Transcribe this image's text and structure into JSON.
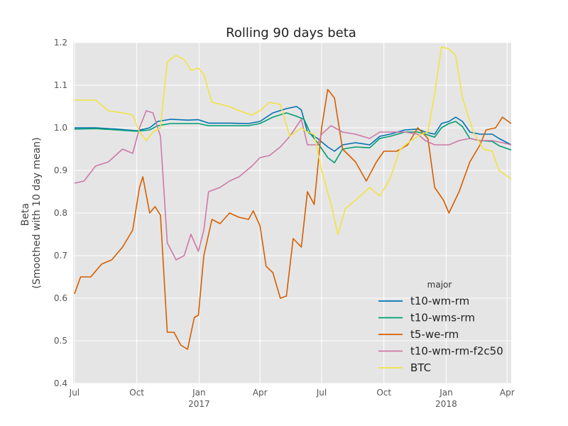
{
  "chart_data": {
    "type": "line",
    "title": "Rolling 90 days beta",
    "ylabel_lines": [
      "Beta",
      "(Smoothed with 10 day mean)"
    ],
    "xlabel": "",
    "ylim": [
      0.4,
      1.2
    ],
    "yticks": [
      "0.4",
      "0.5",
      "0.6",
      "0.7",
      "0.8",
      "0.9",
      "1.0",
      "1.1",
      "1.2"
    ],
    "xrange": [
      "2016-06-29",
      "2018-04-07"
    ],
    "xticks": [
      {
        "date": "2016-07-01",
        "label": "Jul",
        "sub": ""
      },
      {
        "date": "2016-10-01",
        "label": "Oct",
        "sub": ""
      },
      {
        "date": "2017-01-01",
        "label": "Jan",
        "sub": "2017"
      },
      {
        "date": "2017-04-01",
        "label": "Apr",
        "sub": ""
      },
      {
        "date": "2017-07-01",
        "label": "Jul",
        "sub": ""
      },
      {
        "date": "2017-10-01",
        "label": "Oct",
        "sub": ""
      },
      {
        "date": "2018-01-01",
        "label": "Jan",
        "sub": "2018"
      },
      {
        "date": "2018-04-01",
        "label": "Apr",
        "sub": ""
      }
    ],
    "grid": true,
    "legend": {
      "title": "major",
      "placement": "lower-right"
    },
    "series": [
      {
        "name": "t10-wm-rm",
        "color": "#0072B2",
        "points": [
          [
            "2016-07-01",
            1.0
          ],
          [
            "2016-08-01",
            1.0
          ],
          [
            "2016-09-01",
            0.997
          ],
          [
            "2016-10-01",
            0.993
          ],
          [
            "2016-10-20",
            1.0
          ],
          [
            "2016-11-01",
            1.015
          ],
          [
            "2016-11-20",
            1.02
          ],
          [
            "2016-12-15",
            1.018
          ],
          [
            "2016-12-31",
            1.019
          ],
          [
            "2017-01-15",
            1.011
          ],
          [
            "2017-02-15",
            1.011
          ],
          [
            "2017-03-15",
            1.01
          ],
          [
            "2017-04-01",
            1.015
          ],
          [
            "2017-04-20",
            1.035
          ],
          [
            "2017-05-10",
            1.045
          ],
          [
            "2017-05-25",
            1.05
          ],
          [
            "2017-06-01",
            1.042
          ],
          [
            "2017-06-10",
            0.99
          ],
          [
            "2017-06-25",
            0.975
          ],
          [
            "2017-07-10",
            0.955
          ],
          [
            "2017-07-20",
            0.945
          ],
          [
            "2017-08-01",
            0.96
          ],
          [
            "2017-08-20",
            0.965
          ],
          [
            "2017-09-10",
            0.96
          ],
          [
            "2017-09-25",
            0.98
          ],
          [
            "2017-10-10",
            0.985
          ],
          [
            "2017-11-01",
            0.995
          ],
          [
            "2017-11-20",
            0.997
          ],
          [
            "2017-12-01",
            0.99
          ],
          [
            "2017-12-15",
            0.985
          ],
          [
            "2017-12-25",
            1.01
          ],
          [
            "2018-01-05",
            1.015
          ],
          [
            "2018-01-15",
            1.025
          ],
          [
            "2018-01-25",
            1.015
          ],
          [
            "2018-02-05",
            0.99
          ],
          [
            "2018-02-20",
            0.985
          ],
          [
            "2018-03-10",
            0.985
          ],
          [
            "2018-03-20",
            0.975
          ],
          [
            "2018-04-07",
            0.96
          ]
        ]
      },
      {
        "name": "t10-wms-rm",
        "color": "#009E73",
        "points": [
          [
            "2016-07-01",
            0.997
          ],
          [
            "2016-08-01",
            0.998
          ],
          [
            "2016-09-01",
            0.995
          ],
          [
            "2016-10-01",
            0.992
          ],
          [
            "2016-10-20",
            0.995
          ],
          [
            "2016-11-01",
            1.005
          ],
          [
            "2016-11-20",
            1.01
          ],
          [
            "2016-12-15",
            1.01
          ],
          [
            "2016-12-31",
            1.01
          ],
          [
            "2017-01-15",
            1.005
          ],
          [
            "2017-02-15",
            1.005
          ],
          [
            "2017-03-15",
            1.005
          ],
          [
            "2017-04-01",
            1.01
          ],
          [
            "2017-04-20",
            1.025
          ],
          [
            "2017-05-10",
            1.035
          ],
          [
            "2017-05-25",
            1.027
          ],
          [
            "2017-06-05",
            1.02
          ],
          [
            "2017-06-15",
            0.985
          ],
          [
            "2017-06-25",
            0.965
          ],
          [
            "2017-07-10",
            0.93
          ],
          [
            "2017-07-20",
            0.918
          ],
          [
            "2017-08-01",
            0.95
          ],
          [
            "2017-08-20",
            0.955
          ],
          [
            "2017-09-10",
            0.953
          ],
          [
            "2017-09-25",
            0.975
          ],
          [
            "2017-10-10",
            0.98
          ],
          [
            "2017-11-01",
            0.99
          ],
          [
            "2017-11-20",
            0.99
          ],
          [
            "2017-12-01",
            0.985
          ],
          [
            "2017-12-15",
            0.978
          ],
          [
            "2017-12-25",
            1.0
          ],
          [
            "2018-01-05",
            1.01
          ],
          [
            "2018-01-15",
            1.015
          ],
          [
            "2018-01-25",
            1.003
          ],
          [
            "2018-02-05",
            0.975
          ],
          [
            "2018-02-20",
            0.97
          ],
          [
            "2018-03-10",
            0.968
          ],
          [
            "2018-03-20",
            0.958
          ],
          [
            "2018-04-07",
            0.948
          ]
        ]
      },
      {
        "name": "t5-we-rm",
        "color": "#D55E00",
        "points": [
          [
            "2016-07-01",
            0.61
          ],
          [
            "2016-07-10",
            0.65
          ],
          [
            "2016-07-25",
            0.65
          ],
          [
            "2016-08-10",
            0.68
          ],
          [
            "2016-08-25",
            0.69
          ],
          [
            "2016-09-10",
            0.72
          ],
          [
            "2016-09-25",
            0.76
          ],
          [
            "2016-10-05",
            0.86
          ],
          [
            "2016-10-10",
            0.885
          ],
          [
            "2016-10-20",
            0.8
          ],
          [
            "2016-10-28",
            0.815
          ],
          [
            "2016-11-05",
            0.795
          ],
          [
            "2016-11-15",
            0.52
          ],
          [
            "2016-11-25",
            0.52
          ],
          [
            "2016-12-05",
            0.49
          ],
          [
            "2016-12-15",
            0.48
          ],
          [
            "2016-12-25",
            0.555
          ],
          [
            "2016-12-31",
            0.56
          ],
          [
            "2017-01-08",
            0.7
          ],
          [
            "2017-01-20",
            0.785
          ],
          [
            "2017-02-01",
            0.775
          ],
          [
            "2017-02-15",
            0.8
          ],
          [
            "2017-03-01",
            0.79
          ],
          [
            "2017-03-15",
            0.785
          ],
          [
            "2017-03-22",
            0.805
          ],
          [
            "2017-04-01",
            0.77
          ],
          [
            "2017-04-10",
            0.675
          ],
          [
            "2017-04-20",
            0.66
          ],
          [
            "2017-05-01",
            0.6
          ],
          [
            "2017-05-10",
            0.605
          ],
          [
            "2017-05-20",
            0.74
          ],
          [
            "2017-06-01",
            0.72
          ],
          [
            "2017-06-10",
            0.85
          ],
          [
            "2017-06-20",
            0.82
          ],
          [
            "2017-07-01",
            1.0
          ],
          [
            "2017-07-10",
            1.09
          ],
          [
            "2017-07-20",
            1.07
          ],
          [
            "2017-08-01",
            0.95
          ],
          [
            "2017-08-20",
            0.92
          ],
          [
            "2017-09-05",
            0.875
          ],
          [
            "2017-09-20",
            0.92
          ],
          [
            "2017-10-01",
            0.945
          ],
          [
            "2017-10-20",
            0.945
          ],
          [
            "2017-11-05",
            0.96
          ],
          [
            "2017-11-20",
            1.0
          ],
          [
            "2017-12-05",
            0.975
          ],
          [
            "2017-12-15",
            0.86
          ],
          [
            "2017-12-28",
            0.83
          ],
          [
            "2018-01-05",
            0.8
          ],
          [
            "2018-01-20",
            0.85
          ],
          [
            "2018-02-05",
            0.92
          ],
          [
            "2018-02-20",
            0.96
          ],
          [
            "2018-03-01",
            0.995
          ],
          [
            "2018-03-15",
            1.0
          ],
          [
            "2018-03-25",
            1.025
          ],
          [
            "2018-04-07",
            1.01
          ]
        ]
      },
      {
        "name": "t10-wm-rm-f2c50",
        "color": "#CC79A7",
        "points": [
          [
            "2016-07-01",
            0.87
          ],
          [
            "2016-07-15",
            0.875
          ],
          [
            "2016-08-01",
            0.91
          ],
          [
            "2016-08-20",
            0.92
          ],
          [
            "2016-09-10",
            0.95
          ],
          [
            "2016-09-25",
            0.94
          ],
          [
            "2016-10-05",
            1.0
          ],
          [
            "2016-10-15",
            1.04
          ],
          [
            "2016-10-25",
            1.035
          ],
          [
            "2016-11-05",
            0.98
          ],
          [
            "2016-11-15",
            0.73
          ],
          [
            "2016-11-28",
            0.69
          ],
          [
            "2016-12-10",
            0.7
          ],
          [
            "2016-12-20",
            0.75
          ],
          [
            "2016-12-31",
            0.71
          ],
          [
            "2017-01-08",
            0.76
          ],
          [
            "2017-01-15",
            0.85
          ],
          [
            "2017-02-01",
            0.86
          ],
          [
            "2017-02-15",
            0.875
          ],
          [
            "2017-03-01",
            0.885
          ],
          [
            "2017-03-20",
            0.91
          ],
          [
            "2017-04-01",
            0.93
          ],
          [
            "2017-04-15",
            0.935
          ],
          [
            "2017-05-01",
            0.955
          ],
          [
            "2017-05-15",
            0.98
          ],
          [
            "2017-06-01",
            1.02
          ],
          [
            "2017-06-10",
            0.96
          ],
          [
            "2017-06-25",
            0.96
          ],
          [
            "2017-07-01",
            0.985
          ],
          [
            "2017-07-15",
            1.005
          ],
          [
            "2017-08-01",
            0.99
          ],
          [
            "2017-08-20",
            0.985
          ],
          [
            "2017-09-10",
            0.975
          ],
          [
            "2017-09-25",
            0.99
          ],
          [
            "2017-10-10",
            0.99
          ],
          [
            "2017-11-01",
            0.99
          ],
          [
            "2017-11-20",
            0.985
          ],
          [
            "2017-12-01",
            0.97
          ],
          [
            "2017-12-15",
            0.96
          ],
          [
            "2018-01-05",
            0.96
          ],
          [
            "2018-01-20",
            0.97
          ],
          [
            "2018-02-05",
            0.975
          ],
          [
            "2018-02-20",
            0.97
          ],
          [
            "2018-03-10",
            0.97
          ],
          [
            "2018-03-25",
            0.965
          ],
          [
            "2018-04-07",
            0.96
          ]
        ]
      },
      {
        "name": "BTC",
        "color": "#F0E442",
        "points": [
          [
            "2016-07-01",
            1.065
          ],
          [
            "2016-08-01",
            1.065
          ],
          [
            "2016-08-20",
            1.04
          ],
          [
            "2016-09-10",
            1.035
          ],
          [
            "2016-09-25",
            1.03
          ],
          [
            "2016-10-05",
            0.99
          ],
          [
            "2016-10-15",
            0.97
          ],
          [
            "2016-10-25",
            0.99
          ],
          [
            "2016-11-05",
            1.0
          ],
          [
            "2016-11-15",
            1.155
          ],
          [
            "2016-11-28",
            1.17
          ],
          [
            "2016-12-10",
            1.16
          ],
          [
            "2016-12-20",
            1.135
          ],
          [
            "2016-12-31",
            1.14
          ],
          [
            "2017-01-08",
            1.125
          ],
          [
            "2017-01-20",
            1.06
          ],
          [
            "2017-02-15",
            1.05
          ],
          [
            "2017-03-01",
            1.04
          ],
          [
            "2017-03-20",
            1.03
          ],
          [
            "2017-04-01",
            1.04
          ],
          [
            "2017-04-15",
            1.06
          ],
          [
            "2017-05-01",
            1.055
          ],
          [
            "2017-05-15",
            0.98
          ],
          [
            "2017-06-01",
            1.0
          ],
          [
            "2017-06-10",
            0.99
          ],
          [
            "2017-06-20",
            0.985
          ],
          [
            "2017-07-01",
            0.9
          ],
          [
            "2017-07-15",
            0.82
          ],
          [
            "2017-07-25",
            0.75
          ],
          [
            "2017-08-05",
            0.81
          ],
          [
            "2017-08-20",
            0.83
          ],
          [
            "2017-09-10",
            0.86
          ],
          [
            "2017-09-25",
            0.84
          ],
          [
            "2017-10-10",
            0.88
          ],
          [
            "2017-10-25",
            0.95
          ],
          [
            "2017-11-10",
            0.97
          ],
          [
            "2017-11-25",
            0.985
          ],
          [
            "2017-12-05",
            0.99
          ],
          [
            "2017-12-15",
            1.08
          ],
          [
            "2017-12-25",
            1.19
          ],
          [
            "2018-01-05",
            1.185
          ],
          [
            "2018-01-15",
            1.17
          ],
          [
            "2018-01-25",
            1.07
          ],
          [
            "2018-02-10",
            0.99
          ],
          [
            "2018-02-25",
            0.95
          ],
          [
            "2018-03-10",
            0.945
          ],
          [
            "2018-03-20",
            0.9
          ],
          [
            "2018-04-07",
            0.88
          ]
        ]
      }
    ]
  }
}
